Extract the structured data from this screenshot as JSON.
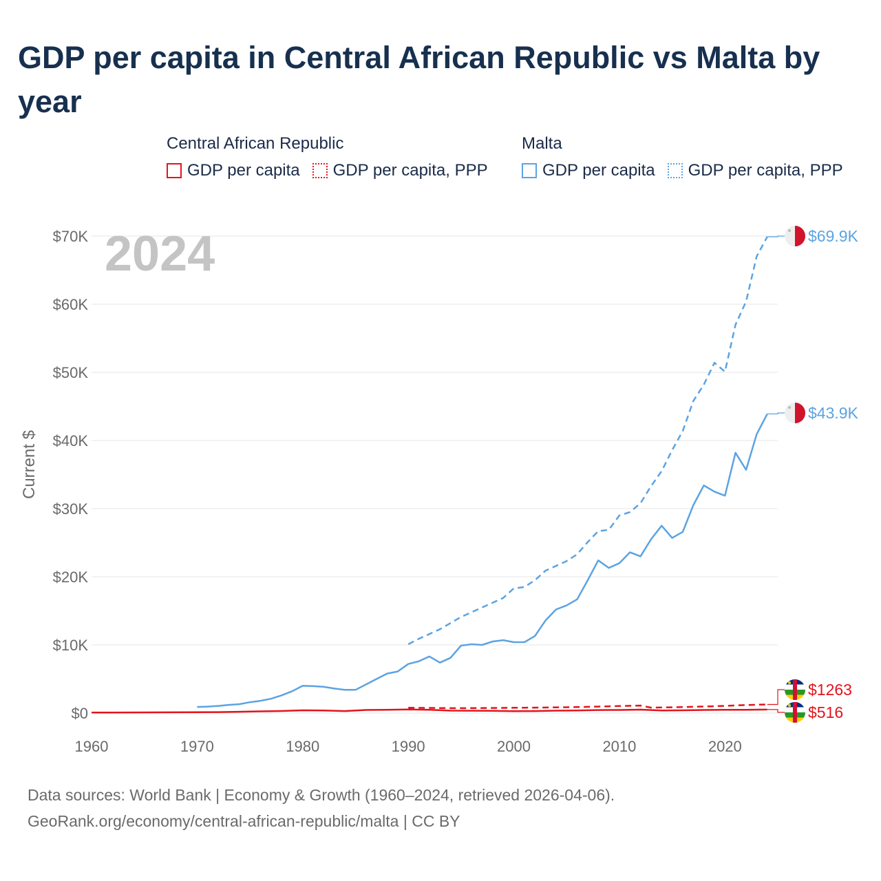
{
  "title": "GDP per capita in Central African Republic vs Malta by year",
  "legend": {
    "groups": [
      {
        "name": "Central African Republic",
        "color": "#e3131b",
        "items": [
          {
            "label": "GDP per capita",
            "style": "solid"
          },
          {
            "label": "GDP per capita, PPP",
            "style": "dotted"
          }
        ]
      },
      {
        "name": "Malta",
        "color": "#5ba3e2",
        "items": [
          {
            "label": "GDP per capita",
            "style": "solid"
          },
          {
            "label": "GDP per capita, PPP",
            "style": "dotted"
          }
        ]
      }
    ]
  },
  "year_label": "2024",
  "footer": {
    "line1": "Data sources: World Bank | Economy & Growth (1960–2024, retrieved 2026-04-06).",
    "line2": "GeoRank.org/economy/central-african-republic/malta | CC BY"
  },
  "chart_data": {
    "type": "line",
    "title": "GDP per capita in Central African Republic vs Malta by year",
    "xlabel": "",
    "ylabel": "Current $",
    "xlim": [
      1960,
      2025
    ],
    "ylim": [
      0,
      70000
    ],
    "x_ticks": [
      1960,
      1970,
      1980,
      1990,
      2000,
      2010,
      2020
    ],
    "y_ticks": [
      {
        "value": 0,
        "label": "$0"
      },
      {
        "value": 10000,
        "label": "$10K"
      },
      {
        "value": 20000,
        "label": "$20K"
      },
      {
        "value": 30000,
        "label": "$30K"
      },
      {
        "value": 40000,
        "label": "$40K"
      },
      {
        "value": 50000,
        "label": "$50K"
      },
      {
        "value": 60000,
        "label": "$60K"
      },
      {
        "value": 70000,
        "label": "$70K"
      }
    ],
    "grid": true,
    "series": [
      {
        "name": "Malta GDP per capita, PPP",
        "country": "Malta",
        "color": "#5ba3e2",
        "dash": true,
        "end_label": "$69.9K",
        "x": [
          1990,
          1991,
          1992,
          1993,
          1994,
          1995,
          1996,
          1997,
          1998,
          1999,
          2000,
          2001,
          2002,
          2003,
          2004,
          2005,
          2006,
          2007,
          2008,
          2009,
          2010,
          2011,
          2012,
          2013,
          2014,
          2015,
          2016,
          2017,
          2018,
          2019,
          2020,
          2021,
          2022,
          2023,
          2024
        ],
        "values": [
          10100,
          10900,
          11600,
          12300,
          13200,
          14100,
          14800,
          15500,
          16200,
          16900,
          18300,
          18500,
          19500,
          20900,
          21600,
          22300,
          23300,
          25100,
          26700,
          26900,
          29000,
          29500,
          30800,
          33300,
          35500,
          38600,
          41400,
          45800,
          48200,
          51400,
          50100,
          57000,
          60400,
          67000,
          69900
        ]
      },
      {
        "name": "Malta GDP per capita",
        "country": "Malta",
        "color": "#5ba3e2",
        "dash": false,
        "end_label": "$43.9K",
        "x": [
          1970,
          1971,
          1972,
          1973,
          1974,
          1975,
          1976,
          1977,
          1978,
          1979,
          1980,
          1981,
          1982,
          1983,
          1984,
          1985,
          1986,
          1987,
          1988,
          1989,
          1990,
          1991,
          1992,
          1993,
          1994,
          1995,
          1996,
          1997,
          1998,
          1999,
          2000,
          2001,
          2002,
          2003,
          2004,
          2005,
          2006,
          2007,
          2008,
          2009,
          2010,
          2011,
          2012,
          2013,
          2014,
          2015,
          2016,
          2017,
          2018,
          2019,
          2020,
          2021,
          2022,
          2023,
          2024
        ],
        "values": [
          900,
          950,
          1050,
          1200,
          1300,
          1600,
          1800,
          2100,
          2600,
          3200,
          4000,
          3950,
          3850,
          3600,
          3400,
          3400,
          4200,
          5000,
          5800,
          6100,
          7200,
          7600,
          8300,
          7400,
          8100,
          9900,
          10100,
          10000,
          10500,
          10700,
          10400,
          10400,
          11300,
          13600,
          15200,
          15800,
          16700,
          19500,
          22400,
          21300,
          22000,
          23600,
          23000,
          25500,
          27500,
          25700,
          26600,
          30500,
          33400,
          32500,
          31900,
          38200,
          35700,
          40900,
          43900
        ]
      },
      {
        "name": "Central African Republic GDP per capita, PPP",
        "country": "Central African Republic",
        "color": "#e3131b",
        "dash": true,
        "end_label": "$1263",
        "x": [
          1990,
          1992,
          1994,
          1996,
          1998,
          2000,
          2002,
          2004,
          2006,
          2008,
          2010,
          2012,
          2013,
          2014,
          2016,
          2018,
          2020,
          2022,
          2024
        ],
        "values": [
          780,
          760,
          720,
          730,
          750,
          780,
          800,
          840,
          880,
          950,
          1030,
          1100,
          800,
          820,
          880,
          960,
          1050,
          1180,
          1263
        ]
      },
      {
        "name": "Central African Republic GDP per capita",
        "country": "Central African Republic",
        "color": "#e3131b",
        "dash": false,
        "end_label": "$516",
        "x": [
          1960,
          1962,
          1964,
          1966,
          1968,
          1970,
          1972,
          1974,
          1976,
          1978,
          1980,
          1982,
          1984,
          1986,
          1988,
          1990,
          1992,
          1994,
          1996,
          1998,
          2000,
          2002,
          2004,
          2006,
          2008,
          2010,
          2012,
          2014,
          2016,
          2018,
          2020,
          2022,
          2024
        ],
        "values": [
          70,
          80,
          90,
          100,
          110,
          120,
          140,
          190,
          250,
          300,
          400,
          370,
          290,
          450,
          480,
          530,
          480,
          350,
          340,
          330,
          280,
          290,
          350,
          380,
          440,
          450,
          500,
          380,
          400,
          450,
          480,
          480,
          516
        ]
      }
    ]
  }
}
